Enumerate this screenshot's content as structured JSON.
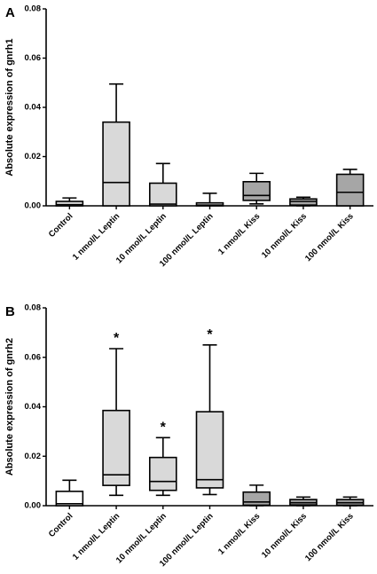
{
  "chart_data": [
    {
      "panel": "A",
      "type": "box",
      "ylabel": "Absolute expression of gnrh1",
      "ylim": [
        0,
        0.08
      ],
      "yticks": [
        "0.00",
        "0.02",
        "0.04",
        "0.06",
        "0.08"
      ],
      "categories": [
        "Control",
        "1 nmol/L Leptin",
        "10 nmol/L Leptin",
        "100 nmol/L Leptin",
        "1 nmol/L Kiss",
        "10 nmol/L Kiss",
        "100 nmol/L Kiss"
      ],
      "boxes": [
        {
          "min": 0.0,
          "q1": 0.0,
          "median": 0.0005,
          "q3": 0.0018,
          "max": 0.0032,
          "color": "#d9d9d9"
        },
        {
          "min": 0.0,
          "q1": 0.0,
          "median": 0.0095,
          "q3": 0.034,
          "max": 0.0495,
          "color": "#d9d9d9"
        },
        {
          "min": 0.0,
          "q1": 0.0,
          "median": 0.0007,
          "q3": 0.0092,
          "max": 0.0172,
          "color": "#d9d9d9"
        },
        {
          "min": 0.0,
          "q1": 0.0,
          "median": 0.0003,
          "q3": 0.0012,
          "max": 0.0051,
          "color": "#d9d9d9"
        },
        {
          "min": 0.0008,
          "q1": 0.0022,
          "median": 0.0042,
          "q3": 0.0098,
          "max": 0.0132,
          "color": "#a6a6a6"
        },
        {
          "min": 0.0,
          "q1": 0.0003,
          "median": 0.0018,
          "q3": 0.0028,
          "max": 0.0035,
          "color": "#a6a6a6"
        },
        {
          "min": 0.0,
          "q1": 0.0,
          "median": 0.0055,
          "q3": 0.0128,
          "max": 0.0148,
          "color": "#a6a6a6"
        }
      ],
      "annotations": []
    },
    {
      "panel": "B",
      "type": "box",
      "ylabel": "Absolute expression of gnrh2",
      "ylim": [
        0,
        0.08
      ],
      "yticks": [
        "0.00",
        "0.02",
        "0.04",
        "0.06",
        "0.08"
      ],
      "categories": [
        "Control",
        "1 nmol/L Leptin",
        "10 nmol/L Leptin",
        "100 nmol/L Leptin",
        "1 nmol/L Kiss",
        "10 nmol/L Kiss",
        "100 nmol/L Kiss"
      ],
      "boxes": [
        {
          "min": 0.0,
          "q1": 0.0,
          "median": 0.0008,
          "q3": 0.0058,
          "max": 0.0103,
          "color": "#ffffff"
        },
        {
          "min": 0.0042,
          "q1": 0.0082,
          "median": 0.0125,
          "q3": 0.0385,
          "max": 0.0635,
          "color": "#d9d9d9"
        },
        {
          "min": 0.0042,
          "q1": 0.0062,
          "median": 0.0098,
          "q3": 0.0195,
          "max": 0.0275,
          "color": "#d9d9d9"
        },
        {
          "min": 0.0045,
          "q1": 0.0072,
          "median": 0.0105,
          "q3": 0.038,
          "max": 0.065,
          "color": "#d9d9d9"
        },
        {
          "min": 0.0,
          "q1": 0.0002,
          "median": 0.0015,
          "q3": 0.0055,
          "max": 0.0083,
          "color": "#a6a6a6"
        },
        {
          "min": 0.0,
          "q1": 0.0003,
          "median": 0.0012,
          "q3": 0.0025,
          "max": 0.0035,
          "color": "#a6a6a6"
        },
        {
          "min": 0.0,
          "q1": 0.0002,
          "median": 0.0012,
          "q3": 0.0025,
          "max": 0.0035,
          "color": "#a6a6a6"
        }
      ],
      "annotations": [
        {
          "category_index": 1,
          "text": "*"
        },
        {
          "category_index": 2,
          "text": "*"
        },
        {
          "category_index": 3,
          "text": "*"
        }
      ]
    }
  ]
}
